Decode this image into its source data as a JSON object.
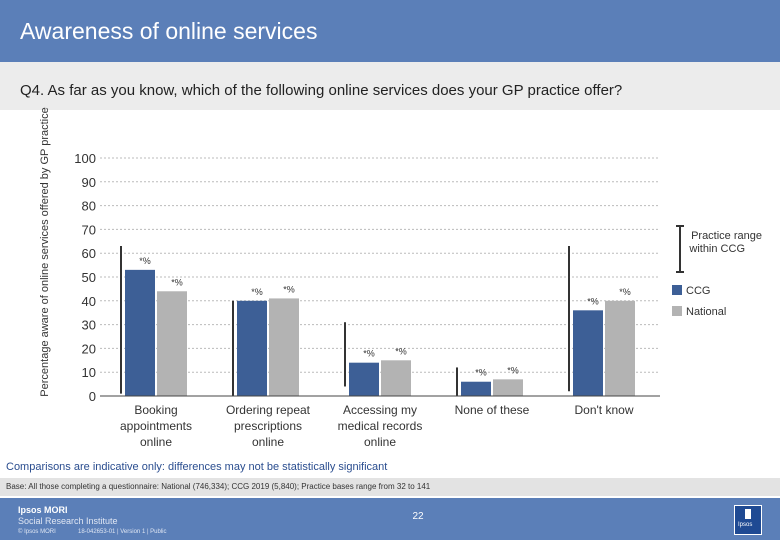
{
  "page": {
    "title": "Awareness of online services",
    "question": "Q4. As far as you know, which of the following online services does your GP practice offer?",
    "note": "Comparisons are indicative only: differences may not be statistically significant",
    "base": "Base: All those completing a questionnaire: National (746,334); CCG 2019 (5,840); Practice bases range from 32 to 141",
    "page_number": "22",
    "logo_line1": "Ipsos MORI",
    "logo_line2": "Social Research Institute",
    "copyright": "© Ipsos MORI",
    "job_ref": "18-042653-01 | Version 1 | Public",
    "brand_box": "Ipsos"
  },
  "colors": {
    "ccg": "#3d5f96",
    "national": "#b3b3b3",
    "range": "#333333",
    "grid": "#bbbbbb",
    "header": "#5b7fb8"
  },
  "chart_data": {
    "type": "bar",
    "ylabel": "Percentage aware of online services offered by GP practice",
    "ylim": [
      0,
      100
    ],
    "yticks": [
      0,
      10,
      20,
      30,
      40,
      50,
      60,
      70,
      80,
      90,
      100
    ],
    "categories": [
      "Booking appointments online",
      "Ordering repeat prescriptions online",
      "Accessing my medical records online",
      "None of these",
      "Don't know"
    ],
    "category_lines": [
      [
        "Booking",
        "appointments",
        "online"
      ],
      [
        "Ordering repeat",
        "prescriptions",
        "online"
      ],
      [
        "Accessing my",
        "medical records",
        "online"
      ],
      [
        "None of these"
      ],
      [
        "Don't know"
      ]
    ],
    "series": [
      {
        "name": "CCG",
        "values": [
          53,
          40,
          14,
          6,
          36
        ],
        "labels": [
          "*%",
          "*%",
          "*%",
          "*%",
          "*%"
        ]
      },
      {
        "name": "National",
        "values": [
          44,
          41,
          15,
          7,
          40
        ],
        "labels": [
          "*%",
          "*%",
          "*%",
          "*%",
          "*%"
        ]
      }
    ],
    "practice_range": [
      [
        1,
        63
      ],
      [
        0,
        40
      ],
      [
        4,
        31
      ],
      [
        0,
        12
      ],
      [
        2,
        63
      ]
    ],
    "legend": {
      "range_label": "Practice range within CCG",
      "position": "right"
    },
    "grid": true
  }
}
